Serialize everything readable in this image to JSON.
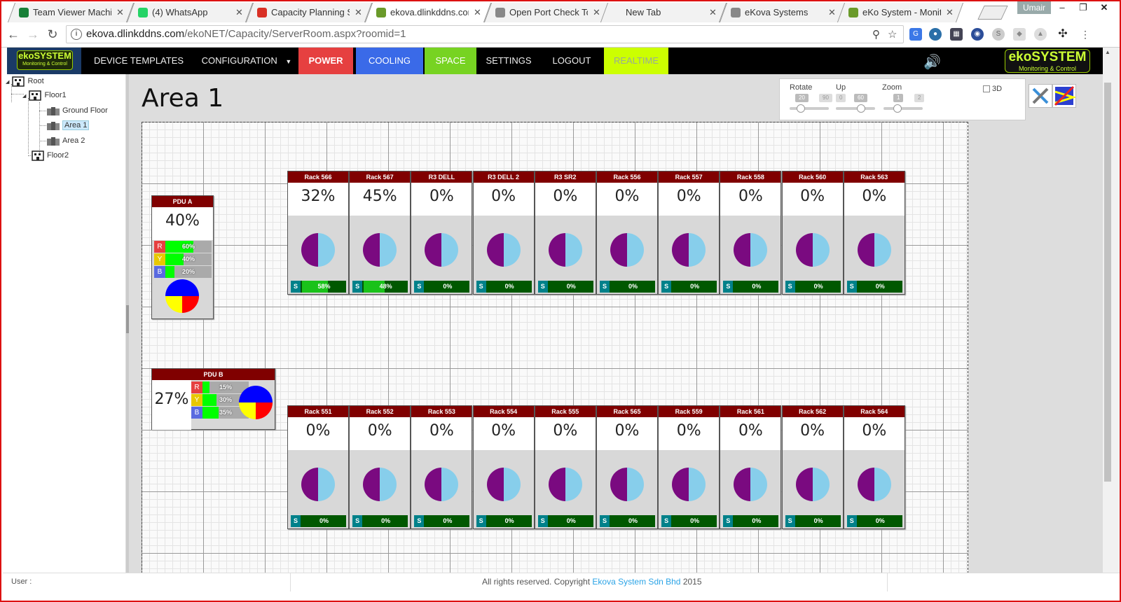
{
  "browser": {
    "tabs": [
      {
        "label": "Team Viewer Machin",
        "icon": "sheets-icon",
        "color": "#188038"
      },
      {
        "label": "(4) WhatsApp",
        "icon": "whatsapp-icon",
        "color": "#25d366"
      },
      {
        "label": "Capacity Planning Sc",
        "icon": "gmail-icon",
        "color": "#d93025"
      },
      {
        "label": "ekova.dlinkddns.com",
        "icon": "ekova-icon",
        "color": "#6a9a2a"
      },
      {
        "label": "Open Port Check Too",
        "icon": "page-icon",
        "color": "#888888"
      },
      {
        "label": "New Tab",
        "icon": "",
        "color": ""
      },
      {
        "label": "eKova Systems",
        "icon": "page-icon",
        "color": "#888888"
      },
      {
        "label": "eKo System - Monito",
        "icon": "ekova-icon",
        "color": "#6a9a2a"
      }
    ],
    "active_tab": 3,
    "user_badge": "Umair",
    "url_host": "ekova.dlinkddns.com",
    "url_path": "/ekoNET/Capacity/ServerRoom.aspx?roomid=1"
  },
  "nav": {
    "logo_title": "ekoSYSTEM",
    "logo_sub": "Monitoring & Control",
    "items": [
      {
        "label": "DEVICE TEMPLATES"
      },
      {
        "label": "CONFIGURATION"
      },
      {
        "label": "POWER"
      },
      {
        "label": "COOLING"
      },
      {
        "label": "SPACE"
      },
      {
        "label": "SETTINGS"
      },
      {
        "label": "LOGOUT"
      },
      {
        "label": "REALTIME"
      }
    ],
    "logo_right_title": "ekoSYSTEM",
    "logo_right_sub": "Monitoring & Control"
  },
  "tree": {
    "root": "Root",
    "floor1": "Floor1",
    "ground": "Ground Floor",
    "area1": "Area 1",
    "area2": "Area 2",
    "floor2": "Floor2"
  },
  "page_title": "Area 1",
  "controls": {
    "rotate_label": "Rotate",
    "rotate_value": "20",
    "rotate_max": "90",
    "up_label": "Up",
    "up_min": "0",
    "up_value": "60",
    "zoom_label": "Zoom",
    "zoom_value": "1",
    "zoom_max": "2",
    "checkbox_3d": "3D"
  },
  "pdus": [
    {
      "name": "PDU A",
      "load": "40%",
      "phases": [
        {
          "ph": "R",
          "pct": 60,
          "label": "60%"
        },
        {
          "ph": "Y",
          "pct": 40,
          "label": "40%"
        },
        {
          "ph": "B",
          "pct": 20,
          "label": "20%"
        }
      ]
    },
    {
      "name": "PDU B",
      "load": "27%",
      "phases": [
        {
          "ph": "R",
          "pct": 15,
          "label": "15%"
        },
        {
          "ph": "Y",
          "pct": 30,
          "label": "30%"
        },
        {
          "ph": "B",
          "pct": 35,
          "label": "35%"
        }
      ]
    }
  ],
  "rack_row_top": [
    {
      "name": "Rack 566",
      "load": "32%",
      "s_label": "S",
      "space": "58%",
      "space_frac": 0.58
    },
    {
      "name": "Rack 567",
      "load": "45%",
      "s_label": "S",
      "space": "48%",
      "space_frac": 0.48
    },
    {
      "name": "R3 DELL",
      "load": "0%",
      "s_label": "S",
      "space": "0%",
      "space_frac": 0
    },
    {
      "name": "R3 DELL 2",
      "load": "0%",
      "s_label": "S",
      "space": "0%",
      "space_frac": 0
    },
    {
      "name": "R3 SR2",
      "load": "0%",
      "s_label": "S",
      "space": "0%",
      "space_frac": 0
    },
    {
      "name": "Rack 556",
      "load": "0%",
      "s_label": "S",
      "space": "0%",
      "space_frac": 0
    },
    {
      "name": "Rack 557",
      "load": "0%",
      "s_label": "S",
      "space": "0%",
      "space_frac": 0
    },
    {
      "name": "Rack 558",
      "load": "0%",
      "s_label": "S",
      "space": "0%",
      "space_frac": 0
    },
    {
      "name": "Rack 560",
      "load": "0%",
      "s_label": "S",
      "space": "0%",
      "space_frac": 0
    },
    {
      "name": "Rack 563",
      "load": "0%",
      "s_label": "S",
      "space": "0%",
      "space_frac": 0
    }
  ],
  "rack_row_bottom": [
    {
      "name": "Rack 551",
      "load": "0%",
      "s_label": "S",
      "space": "0%",
      "space_frac": 0
    },
    {
      "name": "Rack 552",
      "load": "0%",
      "s_label": "S",
      "space": "0%",
      "space_frac": 0
    },
    {
      "name": "Rack 553",
      "load": "0%",
      "s_label": "S",
      "space": "0%",
      "space_frac": 0
    },
    {
      "name": "Rack 554",
      "load": "0%",
      "s_label": "S",
      "space": "0%",
      "space_frac": 0
    },
    {
      "name": "Rack 555",
      "load": "0%",
      "s_label": "S",
      "space": "0%",
      "space_frac": 0
    },
    {
      "name": "Rack 565",
      "load": "0%",
      "s_label": "S",
      "space": "0%",
      "space_frac": 0
    },
    {
      "name": "Rack 559",
      "load": "0%",
      "s_label": "S",
      "space": "0%",
      "space_frac": 0
    },
    {
      "name": "Rack 561",
      "load": "0%",
      "s_label": "S",
      "space": "0%",
      "space_frac": 0
    },
    {
      "name": "Rack 562",
      "load": "0%",
      "s_label": "S",
      "space": "0%",
      "space_frac": 0
    },
    {
      "name": "Rack 564",
      "load": "0%",
      "s_label": "S",
      "space": "0%",
      "space_frac": 0
    }
  ],
  "status": {
    "user_label": "User :",
    "copyright_prefix": "All rights reserved. Copyright",
    "company": "Ekova System Sdn Bhd",
    "year": "2015"
  },
  "colors": {
    "rack_header": "#800000",
    "phase_r": "#e64040",
    "phase_y": "#e8c800",
    "phase_b": "#5a6ae0",
    "pie_used": "#7a0a80",
    "pie_free": "#87ceeb"
  }
}
